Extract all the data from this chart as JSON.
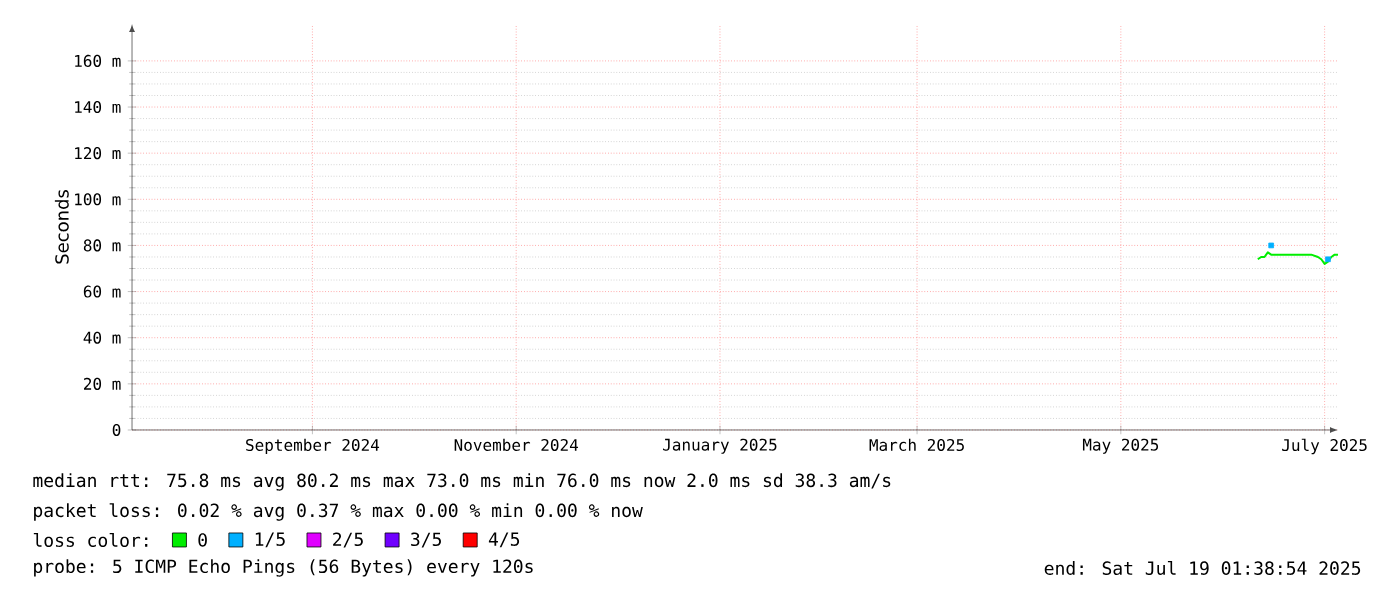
{
  "chart_data": {
    "type": "line",
    "ylabel": "Seconds",
    "xlim": [
      "2024-07-23",
      "2025-07-19"
    ],
    "xticks": [
      {
        "value": "2024-09-15",
        "label": "September 2024"
      },
      {
        "value": "2024-11-15",
        "label": "November 2024"
      },
      {
        "value": "2025-01-15",
        "label": "January 2025"
      },
      {
        "value": "2025-03-15",
        "label": "March 2025"
      },
      {
        "value": "2025-05-15",
        "label": "May 2025"
      },
      {
        "value": "2025-07-15",
        "label": "July 2025"
      }
    ],
    "ylim": [
      0,
      176
    ],
    "yticks": [
      0,
      {
        "value": 20,
        "label": "20 m"
      },
      {
        "value": 40,
        "label": "40 m"
      },
      {
        "value": 60,
        "label": "60 m"
      },
      {
        "value": 80,
        "label": "80 m"
      },
      {
        "value": 100,
        "label": "100 m"
      },
      {
        "value": 120,
        "label": "120 m"
      },
      {
        "value": 140,
        "label": "140 m"
      },
      {
        "value": 160,
        "label": "160 m"
      }
    ],
    "grid": true,
    "legend": "bottom",
    "legend_title": "loss color:",
    "series": [
      {
        "name": "0",
        "color": "#00ee00",
        "x": [
          "2025-06-25",
          "2025-06-26",
          "2025-06-27",
          "2025-06-28",
          "2025-06-29",
          "2025-06-30",
          "2025-07-02",
          "2025-07-05",
          "2025-07-08",
          "2025-07-11",
          "2025-07-13",
          "2025-07-14",
          "2025-07-15",
          "2025-07-16",
          "2025-07-17",
          "2025-07-18",
          "2025-07-19"
        ],
        "values": [
          74,
          75,
          75,
          77,
          76,
          76,
          76,
          76,
          76,
          76,
          75,
          74,
          72,
          73,
          75,
          76,
          76
        ]
      },
      {
        "name": "1/5",
        "color": "#00b0ff",
        "type": "scatter",
        "marker": "square",
        "x": [
          "2025-06-29",
          "2025-07-16"
        ],
        "values": [
          80,
          74
        ]
      },
      {
        "name": "2/5",
        "color": "#e000ff"
      },
      {
        "name": "3/5",
        "color": "#7000ff"
      },
      {
        "name": "4/5",
        "color": "#ff0000"
      }
    ],
    "annotations": [
      "median rtt: 75.8 ms avg 80.2 ms max 73.0 ms min 76.0 ms now 2.0 ms sd 38.3 am/s",
      "packet loss: 0.02 % avg 0.37 % max 0.00 % min 0.00 % now",
      "probe: 5 ICMP Echo Pings (56 Bytes) every 120s",
      "end: Sat Jul 19 01:38:54 2025"
    ]
  }
}
